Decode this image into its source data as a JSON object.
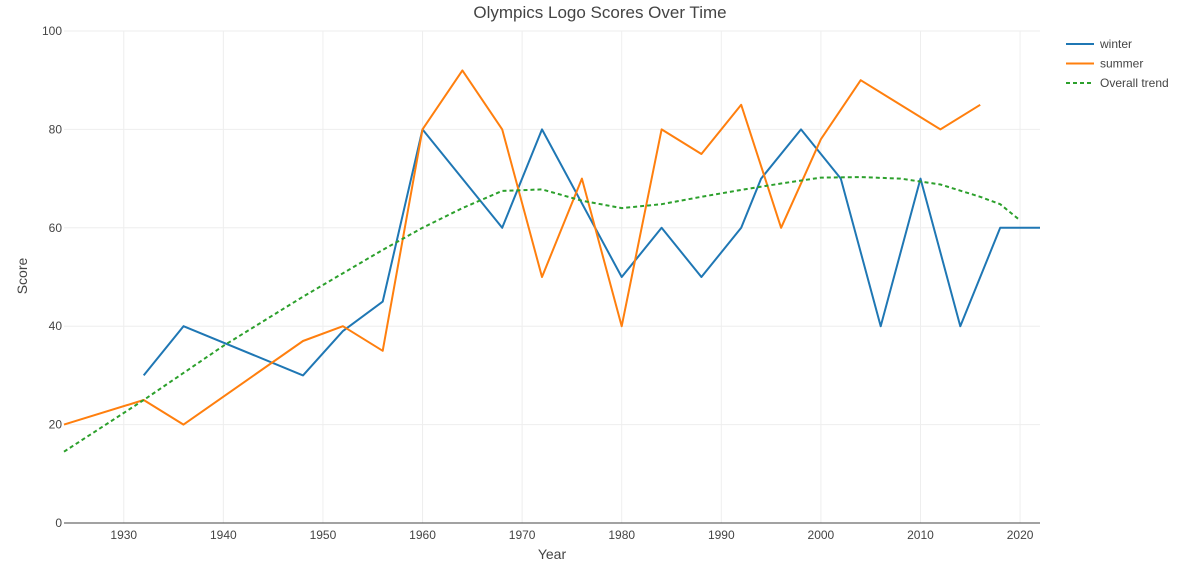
{
  "chart_data": {
    "type": "line",
    "title": "Olympics Logo Scores Over Time",
    "xlabel": "Year",
    "ylabel": "Score",
    "xlim": [
      1924,
      2022
    ],
    "ylim": [
      0,
      100
    ],
    "x_ticks": [
      1930,
      1940,
      1950,
      1960,
      1970,
      1980,
      1990,
      2000,
      2010,
      2020
    ],
    "y_ticks": [
      0,
      20,
      40,
      60,
      80,
      100
    ],
    "grid": true,
    "legend_position": "top-right",
    "series": [
      {
        "name": "winter",
        "color": "#1f77b4",
        "dash": "solid",
        "x": [
          1932,
          1936,
          1948,
          1952,
          1956,
          1960,
          1968,
          1972,
          1980,
          1984,
          1988,
          1992,
          1994,
          1998,
          2002,
          2006,
          2010,
          2014,
          2018,
          2022
        ],
        "values": [
          30,
          40,
          30,
          39,
          45,
          80,
          60,
          80,
          50,
          60,
          50,
          60,
          70,
          80,
          70,
          40,
          70,
          40,
          60,
          60
        ]
      },
      {
        "name": "summer",
        "color": "#ff7f0e",
        "dash": "solid",
        "x": [
          1924,
          1932,
          1936,
          1948,
          1952,
          1956,
          1960,
          1964,
          1968,
          1972,
          1976,
          1980,
          1984,
          1988,
          1992,
          1996,
          2000,
          2004,
          2012,
          2016
        ],
        "values": [
          20,
          25,
          20,
          37,
          40,
          35,
          80,
          92,
          80,
          50,
          70,
          40,
          80,
          75,
          85,
          60,
          78,
          90,
          80,
          85
        ]
      },
      {
        "name": "Overall trend",
        "color": "#2ca02c",
        "dash": "dotted",
        "x": [
          1924,
          1932,
          1940,
          1948,
          1956,
          1960,
          1964,
          1968,
          1972,
          1976,
          1980,
          1984,
          1988,
          1992,
          1996,
          2000,
          2004,
          2008,
          2012,
          2016,
          2018,
          2020
        ],
        "values": [
          14.5,
          25,
          36,
          46,
          55.5,
          60,
          64,
          67.5,
          67.8,
          65.5,
          64,
          64.8,
          66.3,
          67.7,
          69,
          70.2,
          70.3,
          70,
          68.8,
          66.3,
          64.8,
          61.5
        ]
      }
    ]
  }
}
